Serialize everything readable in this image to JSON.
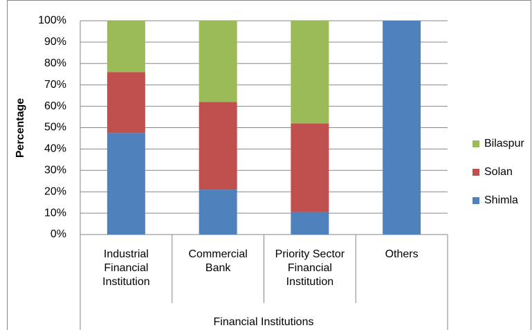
{
  "chart_data": {
    "type": "stacked_bar",
    "y_label": "Percentage",
    "x_label": "Financial Institutions",
    "categories": [
      "Industrial Financial Institution",
      "Commercial Bank",
      "Priority Sector Financial Institution",
      "Others"
    ],
    "series": [
      {
        "name": "Shimla",
        "color": "#4f81bd",
        "values": [
          47.5,
          21,
          10.5,
          100
        ]
      },
      {
        "name": "Solan",
        "color": "#c0504d",
        "values": [
          28.5,
          41,
          41.5,
          0
        ]
      },
      {
        "name": "Bilaspur",
        "color": "#9bbb59",
        "values": [
          24,
          38,
          48,
          0
        ]
      }
    ],
    "ylim": [
      0,
      100
    ],
    "yticks": [
      {
        "value": 0,
        "label": "0%"
      },
      {
        "value": 10,
        "label": "10%"
      },
      {
        "value": 20,
        "label": "20%"
      },
      {
        "value": 30,
        "label": "30%"
      },
      {
        "value": 40,
        "label": "40%"
      },
      {
        "value": 50,
        "label": "50%"
      },
      {
        "value": 60,
        "label": "60%"
      },
      {
        "value": 70,
        "label": "70%"
      },
      {
        "value": 80,
        "label": "80%"
      },
      {
        "value": 90,
        "label": "90%"
      },
      {
        "value": 100,
        "label": "100%"
      }
    ],
    "grid": true,
    "legend": "right"
  }
}
